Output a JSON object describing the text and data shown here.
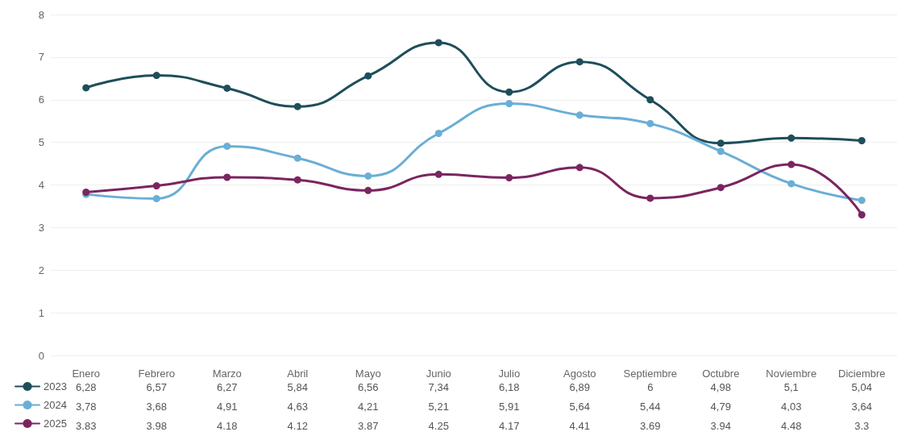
{
  "chart_data": {
    "type": "line",
    "categories": [
      "Enero",
      "Febrero",
      "Marzo",
      "Abril",
      "Mayo",
      "Junio",
      "Julio",
      "Agosto",
      "Septiembre",
      "Octubre",
      "Noviembre",
      "Diciembre"
    ],
    "series": [
      {
        "name": "2023",
        "color": "#1f4e5a",
        "values": [
          6.28,
          6.57,
          6.27,
          5.84,
          6.56,
          7.34,
          6.18,
          6.89,
          6,
          4.98,
          5.1,
          5.04
        ],
        "value_labels": [
          "6,28",
          "6,57",
          "6,27",
          "5,84",
          "6,56",
          "7,34",
          "6,18",
          "6,89",
          "6",
          "4,98",
          "5,1",
          "5,04"
        ]
      },
      {
        "name": "2024",
        "color": "#6aaed6",
        "values": [
          3.78,
          3.68,
          4.91,
          4.63,
          4.21,
          5.21,
          5.91,
          5.64,
          5.44,
          4.79,
          4.03,
          3.64
        ],
        "value_labels": [
          "3,78",
          "3,68",
          "4,91",
          "4,63",
          "4,21",
          "5,21",
          "5,91",
          "5,64",
          "5,44",
          "4,79",
          "4,03",
          "3,64"
        ]
      },
      {
        "name": "2025",
        "color": "#7b2560",
        "values": [
          3.83,
          3.98,
          4.18,
          4.12,
          3.87,
          4.25,
          4.17,
          4.41,
          3.69,
          3.94,
          4.48,
          3.3
        ],
        "value_labels": [
          "3,83",
          "3,98",
          "4,18",
          "4,12",
          "3,87",
          "4,25",
          "4,17",
          "4,41",
          "3,69",
          "3,94",
          "4,48",
          "3,3"
        ]
      }
    ],
    "ylim": [
      0,
      8
    ],
    "yticks": [
      0,
      1,
      2,
      3,
      4,
      5,
      6,
      7,
      8
    ],
    "grid": true,
    "legend": "bottom left",
    "marker": "circle",
    "line_style": "solid"
  }
}
